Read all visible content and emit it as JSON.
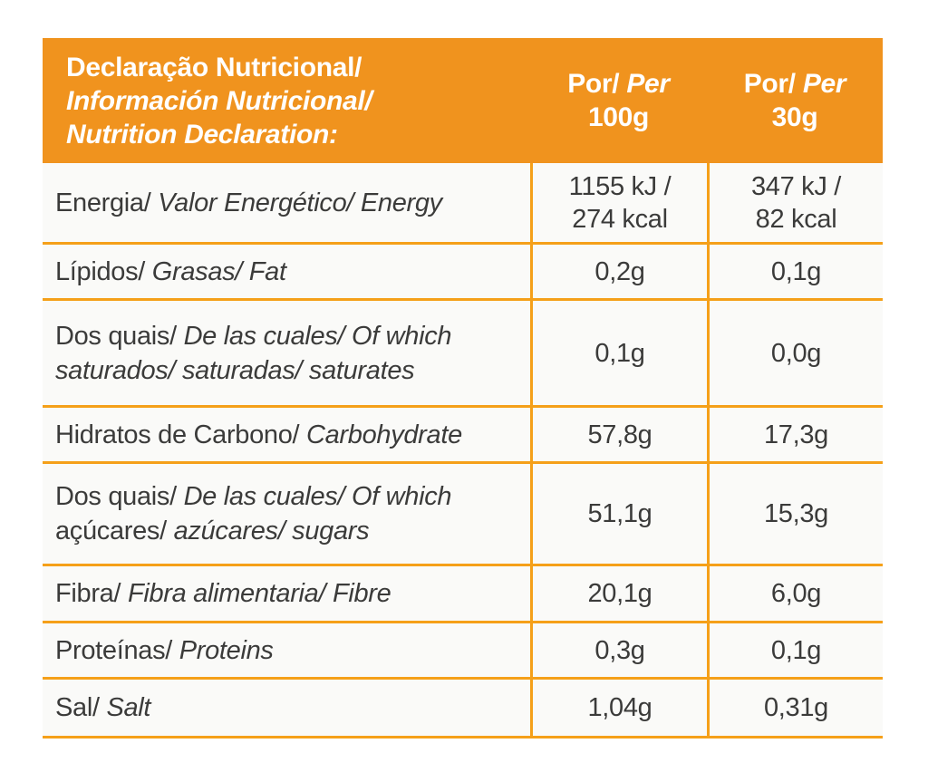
{
  "colors": {
    "accent": "#F0931E",
    "grid": "#F5A019",
    "text": "#3B3B3A",
    "cell_bg": "#FAFAF8",
    "header_text": "#FFFFFF"
  },
  "header": {
    "title_segments": [
      {
        "text": "Declaração Nutricional/\n",
        "italic": false
      },
      {
        "text": "Información Nutricional/\nNutrition Declaration:",
        "italic": true
      }
    ],
    "columns": [
      {
        "name": "per-100g",
        "segments": [
          {
            "text": "Por/ ",
            "italic": false
          },
          {
            "text": "Per",
            "italic": true
          },
          {
            "text": "\n100g",
            "italic": false
          }
        ]
      },
      {
        "name": "per-30g",
        "segments": [
          {
            "text": "Por/ ",
            "italic": false
          },
          {
            "text": "Per",
            "italic": true
          },
          {
            "text": "\n30g",
            "italic": false
          }
        ]
      }
    ]
  },
  "rows": [
    {
      "name": "energy",
      "label_segments": [
        {
          "text": "Energia/ ",
          "italic": false
        },
        {
          "text": "Valor Energético/ Energy",
          "italic": true
        }
      ],
      "per_100g": "1155 kJ /\n274 kcal",
      "per_30g": "347 kJ /\n82 kcal"
    },
    {
      "name": "fat",
      "label_segments": [
        {
          "text": "Lípidos/ ",
          "italic": false
        },
        {
          "text": "Grasas/ Fat",
          "italic": true
        }
      ],
      "per_100g": "0,2g",
      "per_30g": "0,1g"
    },
    {
      "name": "saturates",
      "label_segments": [
        {
          "text": "Dos quais/ ",
          "italic": false
        },
        {
          "text": "De las cuales/ Of which\nsaturados/ saturadas/ saturates",
          "italic": true
        }
      ],
      "per_100g": "0,1g",
      "per_30g": "0,0g"
    },
    {
      "name": "carbohydrate",
      "label_segments": [
        {
          "text": "Hidratos de Carbono/ ",
          "italic": false
        },
        {
          "text": "Carbohydrate",
          "italic": true
        }
      ],
      "per_100g": "57,8g",
      "per_30g": "17,3g"
    },
    {
      "name": "sugars",
      "label_segments": [
        {
          "text": "Dos quais/ ",
          "italic": false
        },
        {
          "text": "De las cuales/ Of which\n",
          "italic": true
        },
        {
          "text": "açúcares/ ",
          "italic": false
        },
        {
          "text": "azúcares/ sugars",
          "italic": true
        }
      ],
      "per_100g": "51,1g",
      "per_30g": "15,3g"
    },
    {
      "name": "fibre",
      "label_segments": [
        {
          "text": "Fibra/ ",
          "italic": false
        },
        {
          "text": "Fibra alimentaria/ Fibre",
          "italic": true
        }
      ],
      "per_100g": "20,1g",
      "per_30g": "6,0g"
    },
    {
      "name": "protein",
      "label_segments": [
        {
          "text": "Proteínas/ ",
          "italic": false
        },
        {
          "text": "Proteins",
          "italic": true
        }
      ],
      "per_100g": "0,3g",
      "per_30g": "0,1g"
    },
    {
      "name": "salt",
      "label_segments": [
        {
          "text": "Sal/ ",
          "italic": false
        },
        {
          "text": "Salt",
          "italic": true
        }
      ],
      "per_100g": "1,04g",
      "per_30g": "0,31g"
    }
  ]
}
